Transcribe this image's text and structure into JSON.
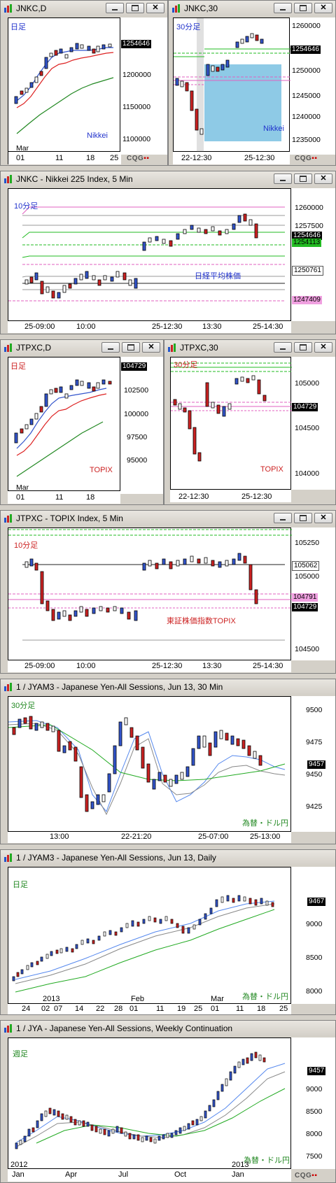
{
  "colors": {
    "up": "#3355cc",
    "down": "#cc2222",
    "ma_red": "#dd2222",
    "ma_green": "#228822",
    "ma_blue": "#5588ee",
    "ma_gray": "#888888",
    "pink": "#e060c0",
    "green_line": "#22bb22",
    "highlight": "#8ecae6"
  },
  "windows": [
    {
      "id": "w1",
      "title": "JNKC,D",
      "label": "日足",
      "label_color": "#2233cc",
      "instrument": "Nikkei",
      "yticks": [
        "1254646",
        "1200000",
        "1150000",
        "1100000"
      ],
      "last_price": "1254646",
      "xticks": [
        "Mar",
        "01",
        "11",
        "18",
        "25"
      ],
      "footer": "CQG"
    },
    {
      "id": "w2",
      "title": "JNKC,30",
      "label": "30分足",
      "label_color": "#2233cc",
      "instrument": "Nikkei",
      "yticks": [
        "1260000",
        "1254646",
        "1250000",
        "1245000",
        "1240000",
        "1235000"
      ],
      "last_price": "1254646",
      "xticks": [
        "22-12:30",
        "25-12:30"
      ],
      "footer": "CQG"
    },
    {
      "id": "w3",
      "title": "JNKC - Nikkei 225 Index, 5 Min",
      "label": "10分足",
      "label_color": "#2233cc",
      "instrument": "日経平均株価",
      "yticks": [
        "1260000",
        "1257500",
        "1254646",
        "1254113",
        "1250761",
        "1247409"
      ],
      "last_price": "1254646",
      "xticks": [
        "25-09:00",
        "10:00",
        "25-12:30",
        "13:30",
        "25-14:30"
      ]
    },
    {
      "id": "w4",
      "title": "JTPXC,D",
      "label": "日足",
      "label_color": "#cc2222",
      "instrument": "TOPIX",
      "yticks": [
        "104729",
        "102500",
        "100000",
        "97500",
        "95000"
      ],
      "last_price": "104729",
      "xticks": [
        "Mar",
        "01",
        "11",
        "18"
      ],
      "footer": ""
    },
    {
      "id": "w5",
      "title": "JTPXC,30",
      "label": "30分足",
      "label_color": "#cc2222",
      "instrument": "TOPIX",
      "yticks": [
        "105000",
        "104729",
        "104500",
        "104000"
      ],
      "last_price": "104729",
      "xticks": [
        "22-12:30",
        "25-12:30"
      ]
    },
    {
      "id": "w6",
      "title": "JTPXC - TOPIX Index, 5 Min",
      "label": "10分足",
      "label_color": "#cc2222",
      "instrument": "東証株価指数TOPIX",
      "yticks": [
        "105250",
        "105062",
        "105000",
        "104791",
        "104729",
        "104500"
      ],
      "last_price": "104729",
      "xticks": [
        "25-09:00",
        "10:00",
        "25-12:30",
        "13:30",
        "25-14:30"
      ]
    },
    {
      "id": "w7",
      "title": "1 / JYAM3 - Japanese Yen-All Sessions, Jun 13, 30 Min",
      "label": "30分足",
      "label_color": "#228822",
      "instrument": "為替・ドル円",
      "yticks": [
        "9500",
        "9475",
        "9457",
        "9450",
        "9425"
      ],
      "last_price": "9457",
      "xticks": [
        "13:00",
        "22-21:20",
        "25-07:00",
        "25-13:00"
      ]
    },
    {
      "id": "w8",
      "title": "1 / JYAM3 - Japanese Yen-All Sessions, Jun 13, Daily",
      "label": "日足",
      "label_color": "#228822",
      "instrument": "為替・ドル円",
      "yticks": [
        "9467",
        "9000",
        "8500",
        "8000"
      ],
      "last_price": "9467",
      "xticks": [
        "2013",
        "Feb",
        "Mar",
        "24",
        "02",
        "07",
        "14",
        "22",
        "28",
        "01",
        "11",
        "19",
        "25",
        "01",
        "11",
        "18",
        "25"
      ]
    },
    {
      "id": "w9",
      "title": "1 / JYA - Japanese Yen-All Sessions, Weekly Continuation",
      "label": "週足",
      "label_color": "#228822",
      "instrument": "為替・ドル円",
      "yticks": [
        "9457",
        "9000",
        "8500",
        "8000",
        "7500"
      ],
      "last_price": "9457",
      "xticks": [
        "2012",
        "2013",
        "Jan",
        "Apr",
        "Jul",
        "Oct",
        "Jan"
      ],
      "footer": "CQG"
    }
  ]
}
